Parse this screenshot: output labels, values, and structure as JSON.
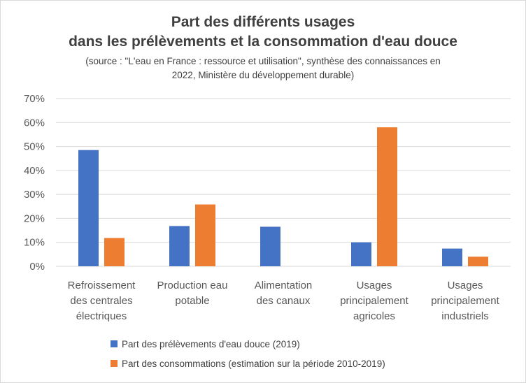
{
  "colors": {
    "series_1": "#4472c4",
    "series_2": "#ed7d31",
    "gridline": "#d9d9d9",
    "text": "#595959"
  },
  "chart_data": {
    "type": "bar",
    "title": [
      "Part des différents usages",
      "dans les prélèvements et la consommation d'eau douce"
    ],
    "subtitle": [
      "(source : \"L'eau en France : ressource et utilisation\", synthèse des connaissances en",
      "2022, Ministère du développement durable)"
    ],
    "categories": [
      [
        "Refroissement",
        "des centrales",
        "électriques"
      ],
      [
        "Production eau",
        "potable"
      ],
      [
        "Alimentation",
        "des canaux"
      ],
      [
        "Usages",
        "principalement",
        "agricoles"
      ],
      [
        "Usages",
        "principalement",
        "industriels"
      ]
    ],
    "series": [
      {
        "name": "Part des prélèvements d'eau douce (2019)",
        "values": [
          48.5,
          16.8,
          16.5,
          10.0,
          7.4
        ]
      },
      {
        "name": "Part des consommations (estimation sur la période 2010-2019)",
        "values": [
          11.8,
          25.8,
          null,
          58.0,
          4.0
        ]
      }
    ],
    "y_ticks": [
      "0%",
      "10%",
      "20%",
      "30%",
      "40%",
      "50%",
      "60%",
      "70%"
    ],
    "ylim": [
      0,
      70
    ],
    "xlabel": "",
    "ylabel": "",
    "grid": true,
    "legend": "bottom"
  }
}
